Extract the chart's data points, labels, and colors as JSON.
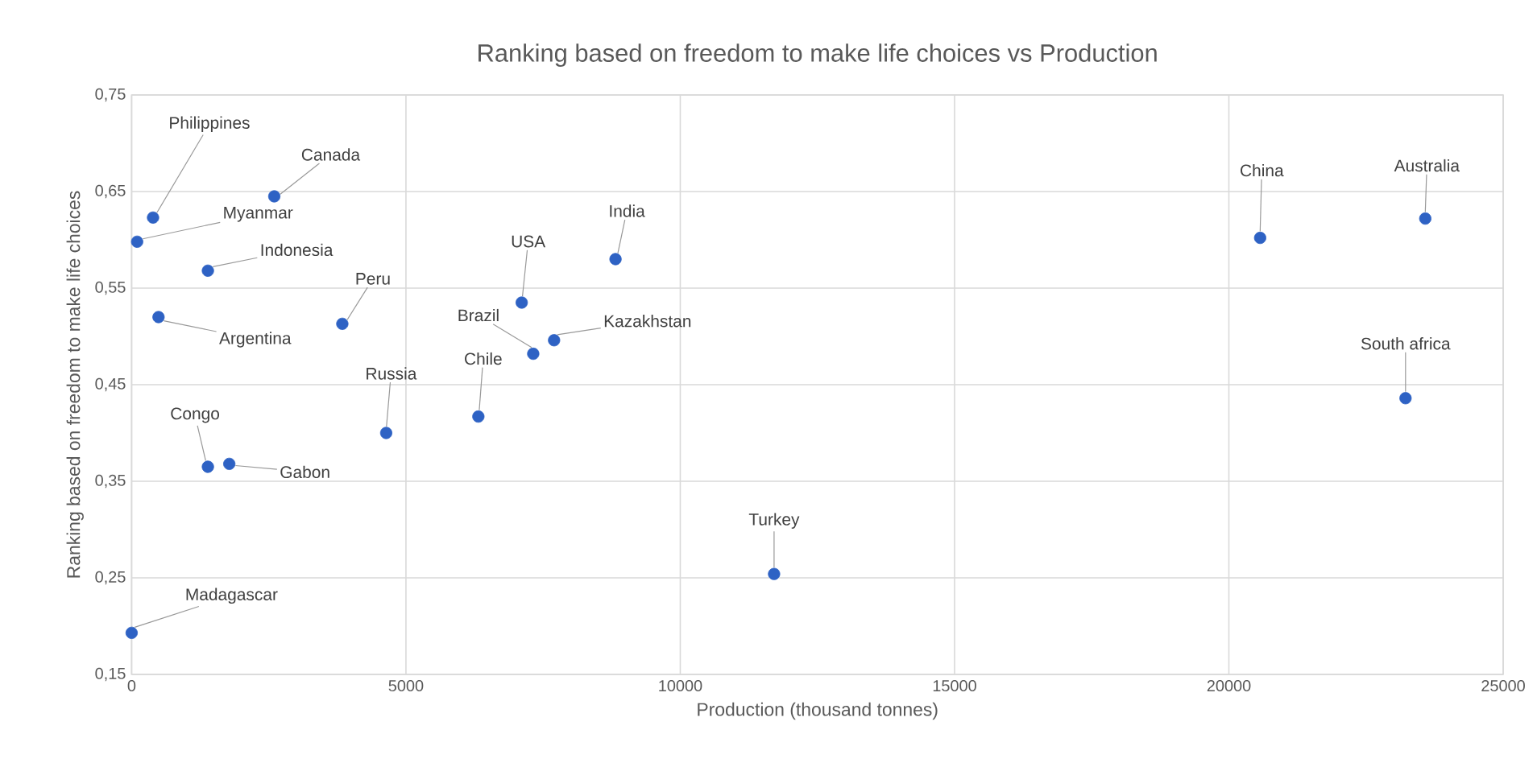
{
  "chart_data": {
    "type": "scatter",
    "title": "Ranking based on freedom to make life choices vs Production",
    "xlabel": "Production (thousand tonnes)",
    "ylabel": "Ranking based on freedom to make life choices",
    "x": [
      390,
      100,
      2600,
      1390,
      490,
      3840,
      7110,
      7320,
      7700,
      8820,
      4640,
      6320,
      1390,
      1780,
      0,
      11710,
      20570,
      23580,
      23220
    ],
    "series": [
      {
        "color": "#2e62c4",
        "values": [
          0.623,
          0.598,
          0.645,
          0.568,
          0.52,
          0.513,
          0.535,
          0.482,
          0.496,
          0.58,
          0.4,
          0.417,
          0.365,
          0.368,
          0.193,
          0.254,
          0.602,
          0.622,
          0.436
        ]
      }
    ],
    "annotations": [
      {
        "text": "Philippines",
        "x": 390,
        "y": 0.623
      },
      {
        "text": "Myanmar",
        "x": 100,
        "y": 0.598
      },
      {
        "text": "Canada",
        "x": 2600,
        "y": 0.645
      },
      {
        "text": "Indonesia",
        "x": 1390,
        "y": 0.568
      },
      {
        "text": "Argentina",
        "x": 490,
        "y": 0.52
      },
      {
        "text": "Peru",
        "x": 3840,
        "y": 0.513
      },
      {
        "text": "USA",
        "x": 7110,
        "y": 0.535
      },
      {
        "text": "Brazil",
        "x": 7320,
        "y": 0.482
      },
      {
        "text": "Kazakhstan",
        "x": 7700,
        "y": 0.496
      },
      {
        "text": "India",
        "x": 8820,
        "y": 0.58
      },
      {
        "text": "Russia",
        "x": 4640,
        "y": 0.4
      },
      {
        "text": "Chile",
        "x": 6320,
        "y": 0.417
      },
      {
        "text": "Congo",
        "x": 1390,
        "y": 0.365
      },
      {
        "text": "Gabon",
        "x": 1780,
        "y": 0.368
      },
      {
        "text": "Madagascar",
        "x": 0,
        "y": 0.193
      },
      {
        "text": "Turkey",
        "x": 11710,
        "y": 0.254
      },
      {
        "text": "China",
        "x": 20570,
        "y": 0.602
      },
      {
        "text": "Australia",
        "x": 23580,
        "y": 0.622
      },
      {
        "text": "South africa",
        "x": 23220,
        "y": 0.436
      }
    ],
    "xlim": [
      0,
      25000
    ],
    "xticks": [
      0,
      5000,
      10000,
      15000,
      20000,
      25000
    ],
    "ylim": [
      0.15,
      0.75
    ],
    "yticks": [
      {
        "value": 0.15,
        "label": "0,15"
      },
      {
        "value": 0.25,
        "label": "0,25"
      },
      {
        "value": 0.35,
        "label": "0,35"
      },
      {
        "value": 0.45,
        "label": "0,45"
      },
      {
        "value": 0.55,
        "label": "0,55"
      },
      {
        "value": 0.65,
        "label": "0,65"
      },
      {
        "value": 0.75,
        "label": "0,75"
      }
    ],
    "grid": true,
    "marker": "circle"
  }
}
